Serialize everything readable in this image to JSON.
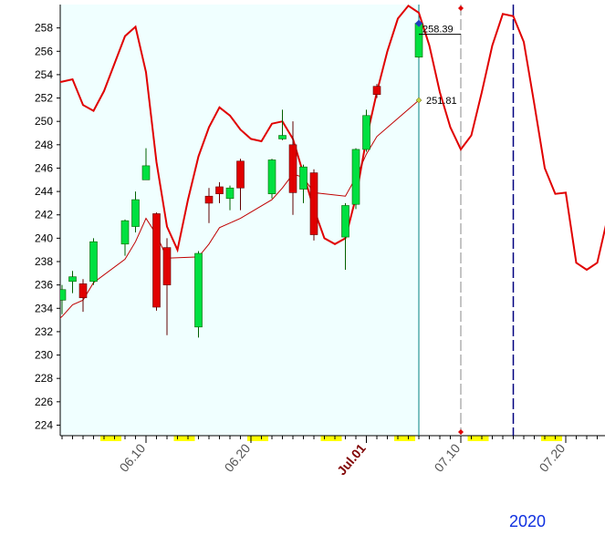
{
  "chart_data": {
    "type": "candlestick",
    "year": "2020",
    "ylim": [
      223.1,
      260.0
    ],
    "yticks": [
      224,
      226,
      228,
      230,
      232,
      234,
      236,
      238,
      240,
      242,
      244,
      246,
      248,
      250,
      252,
      254,
      256,
      258
    ],
    "xlim": [
      "06.01",
      "07.27"
    ],
    "xticks": [
      {
        "value": "06.10",
        "label": "06.10"
      },
      {
        "value": "06.20",
        "label": "06.20"
      },
      {
        "value": "07.01",
        "label": "Jul.01"
      },
      {
        "value": "07.10",
        "label": "07.10"
      },
      {
        "value": "07.20",
        "label": "07.20"
      }
    ],
    "up_color": "#00e040",
    "down_color": "#e00000",
    "candles": {
      "x": [
        "06.02",
        "06.03",
        "06.04",
        "06.05",
        "06.08",
        "06.09",
        "06.10",
        "06.11",
        "06.12",
        "06.15",
        "06.16",
        "06.17",
        "06.18",
        "06.19",
        "06.22",
        "06.23",
        "06.24",
        "06.25",
        "06.26",
        "06.29",
        "06.30",
        "07.01",
        "07.02",
        "07.06"
      ],
      "open": [
        234.7,
        236.3,
        236.1,
        236.3,
        239.5,
        241.0,
        245.0,
        242.1,
        239.2,
        232.4,
        243.6,
        244.4,
        243.4,
        246.6,
        243.8,
        248.5,
        248.0,
        244.2,
        245.6,
        240.1,
        242.9,
        247.6,
        253.0,
        255.5
      ],
      "high": [
        236.0,
        237.2,
        236.5,
        240.0,
        241.6,
        244.0,
        247.7,
        242.2,
        240.0,
        238.9,
        244.3,
        244.8,
        244.5,
        246.8,
        246.8,
        251.0,
        250.0,
        246.3,
        245.9,
        243.0,
        247.7,
        251.0,
        253.2,
        258.6
      ],
      "low": [
        233.5,
        235.3,
        233.7,
        236.0,
        238.5,
        240.5,
        245.0,
        233.8,
        231.7,
        231.5,
        241.3,
        243.0,
        242.4,
        242.4,
        243.4,
        248.4,
        242.0,
        243.0,
        239.8,
        237.3,
        242.5,
        247.4,
        252.0,
        255.4
      ],
      "close": [
        235.6,
        236.7,
        234.9,
        239.7,
        241.5,
        243.3,
        246.2,
        234.1,
        236.0,
        238.7,
        243.0,
        243.8,
        244.3,
        244.3,
        246.7,
        248.8,
        243.9,
        246.1,
        240.3,
        242.8,
        247.6,
        250.5,
        252.3,
        258.39
      ]
    },
    "lines": [
      {
        "color": "#e00000",
        "width": 2,
        "x": [
          "06.01",
          "06.02",
          "06.03",
          "06.04",
          "06.05",
          "06.06",
          "06.08",
          "06.09",
          "06.10",
          "06.11",
          "06.12",
          "06.13",
          "06.14",
          "06.15",
          "06.16",
          "06.17",
          "06.18",
          "06.19",
          "06.20",
          "06.21",
          "06.22",
          "06.23",
          "06.24",
          "06.25",
          "06.26",
          "06.27",
          "06.28",
          "06.29",
          "06.30",
          "07.01",
          "07.02",
          "07.03",
          "07.04",
          "07.05",
          "07.06",
          "07.07",
          "07.08",
          "07.09",
          "07.10",
          "07.11",
          "07.12",
          "07.13",
          "07.14",
          "07.15",
          "07.16",
          "07.17",
          "07.18",
          "07.19",
          "07.20",
          "07.21",
          "07.22",
          "07.23",
          "07.24"
        ],
        "values": [
          253.3,
          253.4,
          253.6,
          251.4,
          250.9,
          252.6,
          257.3,
          258.1,
          254.2,
          246.5,
          241.0,
          239.0,
          243.3,
          247.0,
          249.5,
          251.2,
          250.5,
          249.3,
          248.5,
          248.3,
          249.8,
          250.0,
          248.5,
          245.5,
          242.5,
          240.0,
          239.5,
          240.0,
          243.5,
          248.5,
          252.5,
          256.0,
          258.8,
          259.9,
          259.3,
          256.5,
          252.5,
          249.5,
          247.6,
          248.8,
          252.5,
          256.5,
          259.2,
          259.0,
          256.8,
          251.5,
          246.0,
          243.8,
          243.9,
          237.9,
          237.3,
          237.9,
          241.8
        ]
      },
      {
        "color": "#c00000",
        "width": 1,
        "x": [
          "06.01",
          "06.02",
          "06.03",
          "06.04",
          "06.05",
          "06.08",
          "06.09",
          "06.10",
          "06.11",
          "06.12",
          "06.15",
          "06.16",
          "06.17",
          "06.18",
          "06.19",
          "06.22",
          "06.23",
          "06.24",
          "06.25",
          "06.26",
          "06.29",
          "06.30",
          "07.01",
          "07.02",
          "07.06"
        ],
        "values": [
          232.6,
          233.3,
          234.3,
          234.7,
          236.2,
          238.2,
          239.7,
          241.7,
          240.3,
          238.3,
          238.4,
          239.5,
          240.9,
          241.3,
          241.7,
          243.3,
          244.3,
          245.5,
          245.2,
          243.9,
          243.6,
          245.2,
          247.2,
          248.7,
          251.81
        ]
      }
    ],
    "last_close": 258.39,
    "last_average": 251.81,
    "last_date": "07.06",
    "vlines": [
      {
        "x": "07.06",
        "color": "#008080",
        "dash": false
      },
      {
        "x": "07.10",
        "color": "#b0b0b0",
        "dash": true
      },
      {
        "x": "07.15",
        "color": "#000080",
        "dash": true
      }
    ],
    "background": "#f0ffff"
  }
}
